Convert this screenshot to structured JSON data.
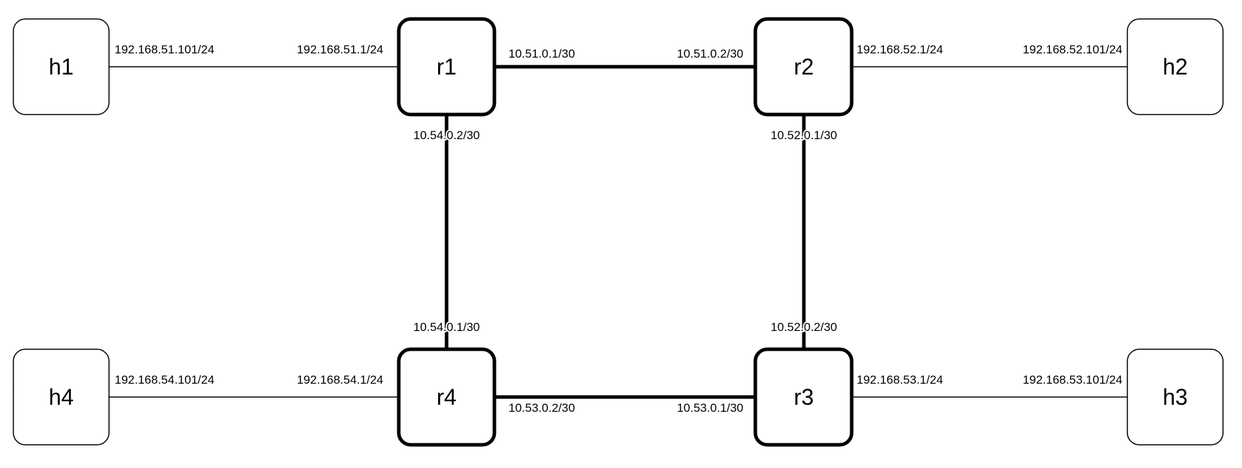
{
  "nodes": {
    "h1": {
      "label": "h1"
    },
    "h2": {
      "label": "h2"
    },
    "h3": {
      "label": "h3"
    },
    "h4": {
      "label": "h4"
    },
    "r1": {
      "label": "r1"
    },
    "r2": {
      "label": "r2"
    },
    "r3": {
      "label": "r3"
    },
    "r4": {
      "label": "r4"
    }
  },
  "links": {
    "h1_r1": {
      "h1_ip": "192.168.51.101/24",
      "r1_ip": "192.168.51.1/24"
    },
    "r1_r2": {
      "r1_ip": "10.51.0.1/30",
      "r2_ip": "10.51.0.2/30"
    },
    "r2_h2": {
      "r2_ip": "192.168.52.1/24",
      "h2_ip": "192.168.52.101/24"
    },
    "r1_r4": {
      "r1_ip": "10.54.0.2/30",
      "r4_ip": "10.54.0.1/30"
    },
    "r2_r3": {
      "r2_ip": "10.52.0.1/30",
      "r3_ip": "10.52.0.2/30"
    },
    "h4_r4": {
      "h4_ip": "192.168.54.101/24",
      "r4_ip": "192.168.54.1/24"
    },
    "r4_r3": {
      "r4_ip": "10.53.0.2/30",
      "r3_ip": "10.53.0.1/30"
    },
    "r3_h3": {
      "r3_ip": "192.168.53.1/24",
      "h3_ip": "192.168.53.101/24"
    }
  }
}
